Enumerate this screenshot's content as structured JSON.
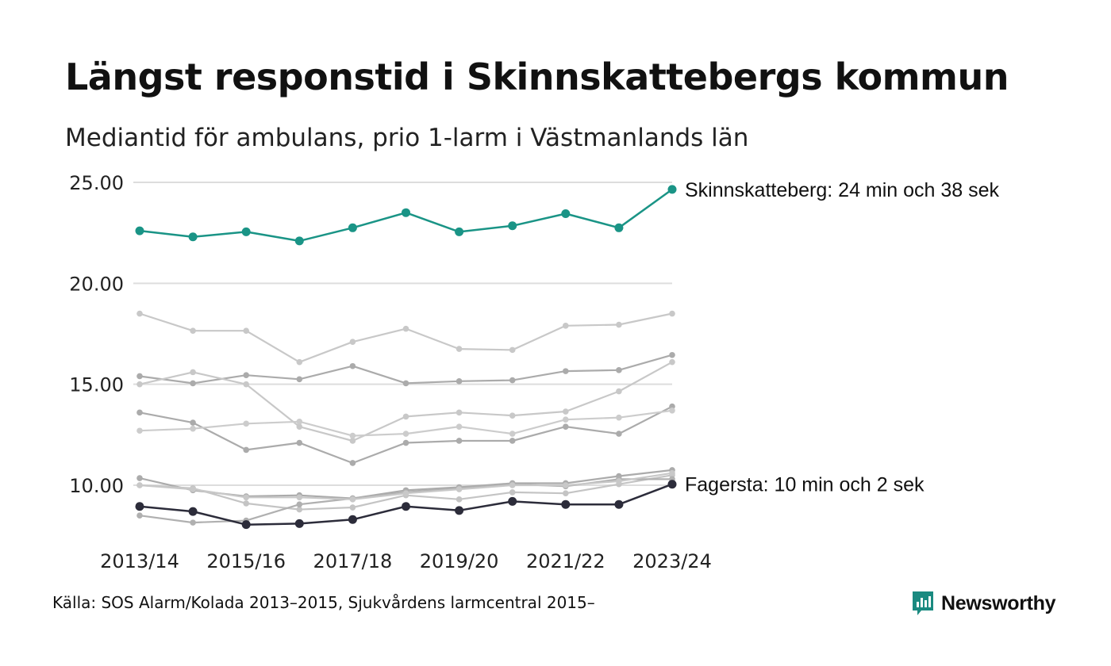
{
  "colors": {
    "highlight_high": "#1a9486",
    "highlight_low": "#2c2c3a",
    "gray_series": [
      "#c8c8c8",
      "#ababab",
      "#c8c8c8",
      "#ababab",
      "#cccccc",
      "#ababab",
      "#c4c4c4",
      "#b0b0b0",
      "#c8c8c8"
    ],
    "grid": "#dddddd",
    "brand": "#1a8a80"
  },
  "chart_data": {
    "type": "line",
    "title": "Längst responstid i Skinnskattebergs kommun",
    "subtitle": "Mediantid för ambulans, prio 1-larm i Västmanlands län",
    "x": [
      "2013/14",
      "2014/15",
      "2015/16",
      "2016/17",
      "2017/18",
      "2018/19",
      "2019/20",
      "2020/21",
      "2021/22",
      "2022/23",
      "2023/24"
    ],
    "x_tick_labels": [
      "2013/14",
      "2015/16",
      "2017/18",
      "2019/20",
      "2021/22",
      "2023/24"
    ],
    "y_ticks": [
      "10.00",
      "15.00",
      "20.00",
      "25.00"
    ],
    "ylim": [
      10,
      25
    ],
    "grid": true,
    "legend": "end-labels",
    "series": [
      {
        "name": "",
        "values": [
          18.5,
          17.65,
          17.65,
          16.1,
          17.1,
          17.75,
          16.75,
          16.7,
          17.9,
          17.95,
          18.5
        ]
      },
      {
        "name": "",
        "values": [
          15.4,
          15.05,
          15.45,
          15.25,
          15.9,
          15.05,
          15.15,
          15.2,
          15.65,
          15.7,
          16.45
        ]
      },
      {
        "name": "",
        "values": [
          15.0,
          15.6,
          15.0,
          12.9,
          12.2,
          13.4,
          13.6,
          13.45,
          13.65,
          14.65,
          16.1
        ]
      },
      {
        "name": "",
        "values": [
          13.6,
          13.1,
          11.75,
          12.1,
          11.1,
          12.1,
          12.2,
          12.2,
          12.9,
          12.55,
          13.9
        ]
      },
      {
        "name": "",
        "values": [
          12.7,
          12.8,
          13.05,
          13.15,
          12.45,
          12.55,
          12.9,
          12.55,
          13.25,
          13.35,
          13.7
        ]
      },
      {
        "name": "",
        "values": [
          10.35,
          9.75,
          9.45,
          9.5,
          9.35,
          9.75,
          9.9,
          10.1,
          10.1,
          10.45,
          10.75
        ]
      },
      {
        "name": "",
        "values": [
          10.0,
          9.85,
          9.1,
          8.8,
          8.9,
          9.5,
          9.3,
          9.65,
          9.6,
          10.05,
          10.5
        ]
      },
      {
        "name": "",
        "values": [
          8.5,
          8.15,
          8.25,
          9.05,
          9.35,
          9.65,
          9.85,
          10.05,
          9.95,
          10.3,
          10.3
        ]
      },
      {
        "name": "",
        "values": [
          10.0,
          9.8,
          9.4,
          9.4,
          9.3,
          9.6,
          9.8,
          10.0,
          10.0,
          10.2,
          10.6
        ]
      },
      {
        "name": "Skinnskatteberg",
        "label": "Skinnskatteberg: 24 min och 38 sek",
        "highlight": "high",
        "values": [
          22.6,
          22.3,
          22.55,
          22.1,
          22.75,
          23.5,
          22.55,
          22.85,
          23.45,
          22.75,
          24.65
        ]
      },
      {
        "name": "Fagersta",
        "label": "Fagersta: 10 min och 2 sek",
        "highlight": "low",
        "values": [
          8.95,
          8.7,
          8.05,
          8.1,
          8.3,
          8.95,
          8.75,
          9.2,
          9.05,
          9.05,
          10.05
        ]
      }
    ],
    "source": "Källa: SOS Alarm/Kolada 2013–2015, Sjukvårdens larmcentral 2015–"
  },
  "brand": {
    "name": "Newsworthy",
    "logo_icon": "bar-chart-bubble-icon"
  }
}
